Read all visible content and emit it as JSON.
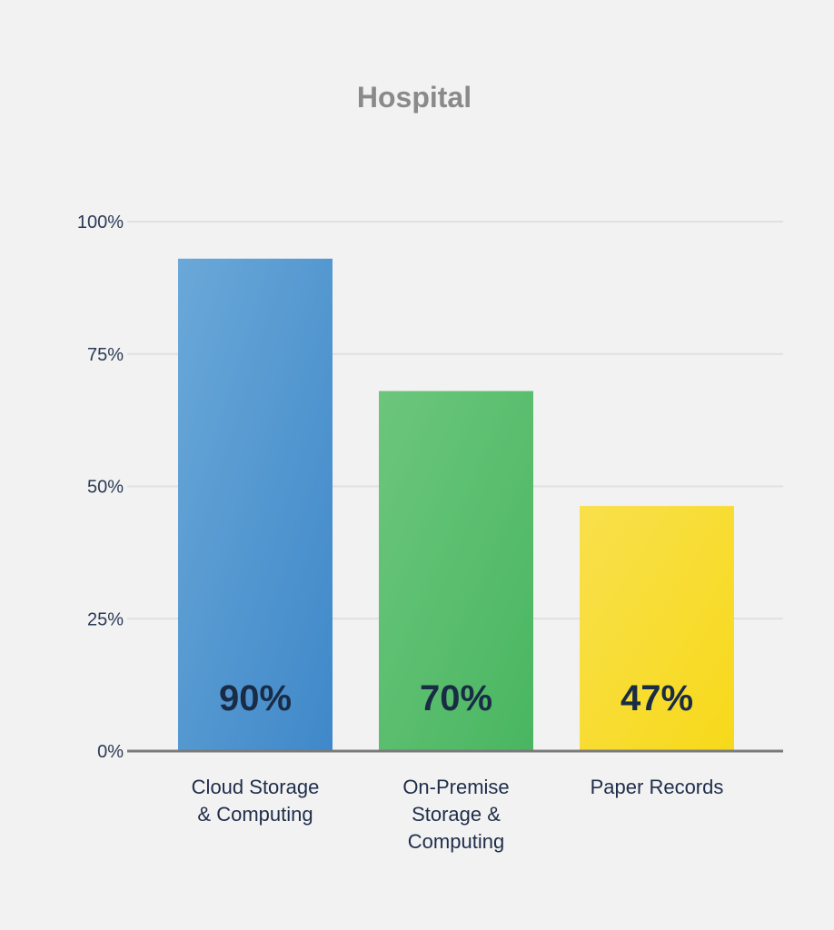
{
  "chart_data": {
    "type": "bar",
    "title": "Hospital",
    "categories": [
      [
        "Cloud Storage",
        "& Computing"
      ],
      [
        "On-Premise",
        "Storage &",
        "Computing"
      ],
      [
        "Paper Records"
      ]
    ],
    "values": [
      90,
      70,
      47
    ],
    "value_labels": [
      "90%",
      "70%",
      "47%"
    ],
    "y_ticks": [
      "0%",
      "25%",
      "50%",
      "75%",
      "100%"
    ],
    "y_tick_values": [
      0,
      25,
      50,
      75,
      100
    ],
    "ylim": [
      0,
      100
    ],
    "grid": true,
    "xlabel": "",
    "ylabel": "",
    "colors": {
      "bar_1_top": "#6aa8d8",
      "bar_1_bottom": "#3f88c9",
      "bar_2_top": "#6cc67c",
      "bar_2_bottom": "#49b661",
      "bar_3_top": "#f9e04c",
      "bar_3_bottom": "#f7d91a",
      "grid": "#e0e0e0",
      "axis": "#7a7a7a"
    }
  }
}
